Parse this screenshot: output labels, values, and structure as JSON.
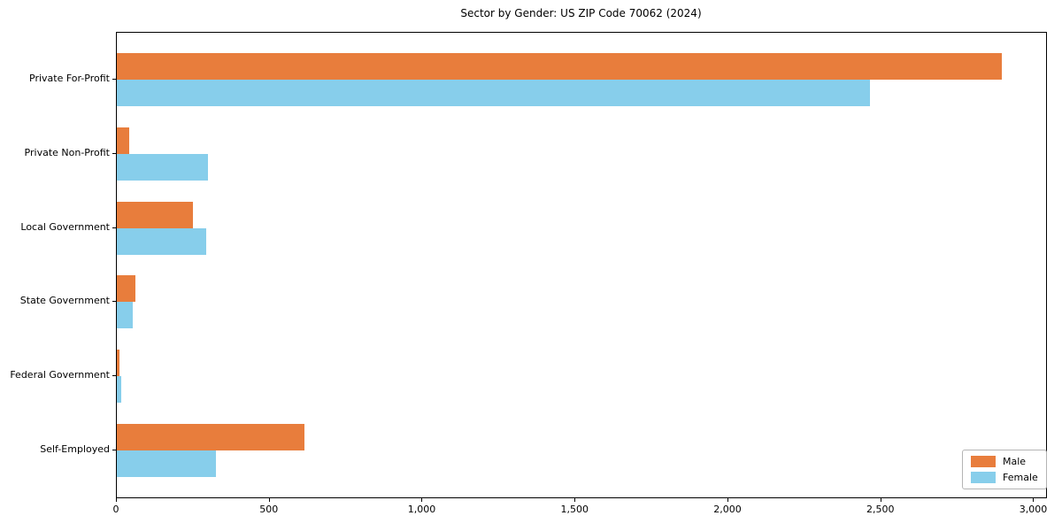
{
  "chart_data": {
    "type": "bar",
    "orientation": "horizontal",
    "title": "Sector by Gender: US ZIP Code 70062 (2024)",
    "categories": [
      "Private For-Profit",
      "Private Non-Profit",
      "Local Government",
      "State Government",
      "Federal Government",
      "Self-Employed"
    ],
    "series": [
      {
        "name": "Male",
        "color": "#e87d3c",
        "values": [
          2897,
          42,
          250,
          62,
          9,
          613
        ]
      },
      {
        "name": "Female",
        "color": "#87ceeb",
        "values": [
          2465,
          298,
          294,
          52,
          14,
          325
        ]
      }
    ],
    "xlabel": "",
    "ylabel": "",
    "xlim": [
      0,
      3042
    ],
    "x_ticks": [
      0,
      500,
      1000,
      1500,
      2000,
      2500,
      3000
    ],
    "x_tick_labels": [
      "0",
      "500",
      "1,000",
      "1,500",
      "2,000",
      "2,500",
      "3,000"
    ],
    "legend_position": "lower right",
    "grid": false,
    "background_color": "#ffffff",
    "axis_color": "#000000"
  }
}
